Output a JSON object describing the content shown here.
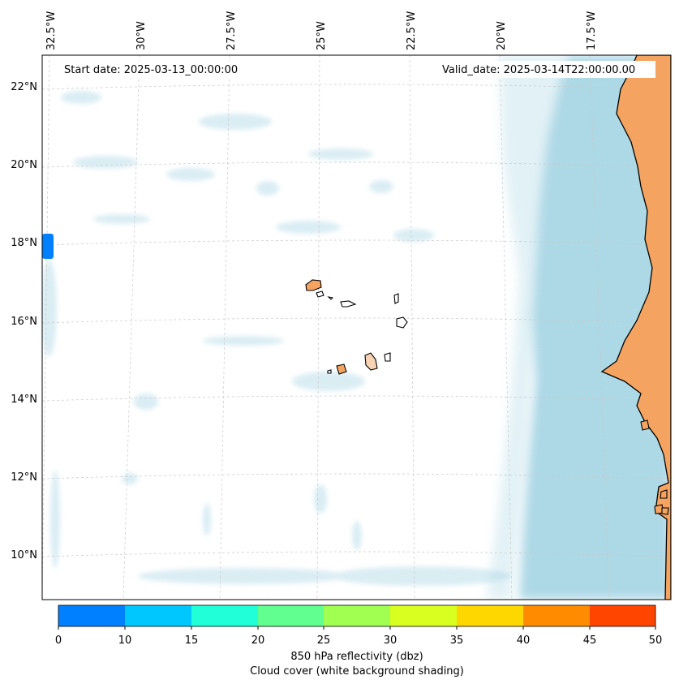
{
  "map": {
    "start_date_label": "Start date: 2025-03-13_00:00:00",
    "valid_date_label": "Valid_date: 2025-03-14T22:00:00.00",
    "lon_labels": [
      "32.5°W",
      "30°W",
      "27.5°W",
      "25°W",
      "22.5°W",
      "20°W",
      "17.5°W"
    ],
    "lat_labels": [
      "22°N",
      "20°N",
      "18°N",
      "16°N",
      "14°N",
      "12°N",
      "10°N"
    ],
    "land_color": "#f4a460",
    "cloud_color": "#add8e6",
    "echo_color": "#0080ff"
  },
  "colorbar": {
    "ticks": [
      "0",
      "10",
      "15",
      "20",
      "25",
      "30",
      "35",
      "40",
      "45",
      "50"
    ],
    "colors": [
      "#0080ff",
      "#00c8ff",
      "#20ffd8",
      "#60ff90",
      "#a0ff50",
      "#d8ff20",
      "#ffd700",
      "#ff8c00",
      "#ff4500"
    ],
    "label_line1": "850 hPa reflectivity (dbz)",
    "label_line2": "Cloud cover (white background shading)"
  }
}
